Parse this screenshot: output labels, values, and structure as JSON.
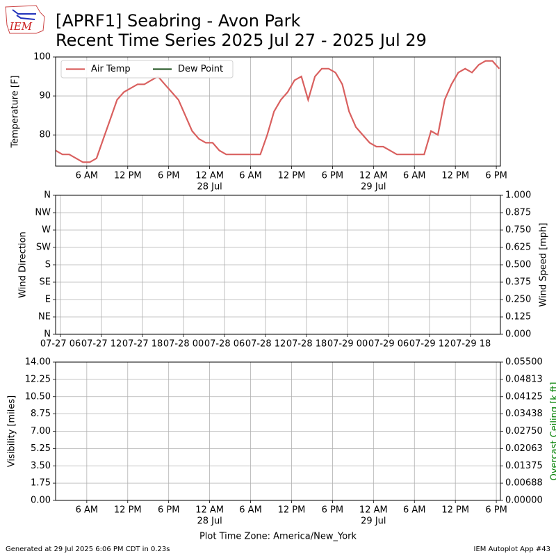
{
  "header": {
    "title_line1": "[APRF1] Seabring - Avon Park",
    "title_line2": "Recent Time Series 2025 Jul 27 - 2025 Jul 29",
    "logo_text": "IEM"
  },
  "chart_data": [
    {
      "type": "line",
      "ylabel": "Temperature [F]",
      "legend": "upper left",
      "grid": true,
      "x": [
        "2025-07-27T01:26",
        "2025-07-27T02:26",
        "2025-07-27T03:26",
        "2025-07-27T04:26",
        "2025-07-27T05:26",
        "2025-07-27T06:26",
        "2025-07-27T07:26",
        "2025-07-27T08:26",
        "2025-07-27T09:26",
        "2025-07-27T10:26",
        "2025-07-27T11:26",
        "2025-07-27T12:26",
        "2025-07-27T13:26",
        "2025-07-27T14:26",
        "2025-07-27T15:26",
        "2025-07-27T16:26",
        "2025-07-27T17:26",
        "2025-07-27T18:26",
        "2025-07-27T19:26",
        "2025-07-27T20:26",
        "2025-07-27T21:26",
        "2025-07-27T22:26",
        "2025-07-27T23:26",
        "2025-07-28T00:26",
        "2025-07-28T01:26",
        "2025-07-28T02:26",
        "2025-07-28T03:26",
        "2025-07-28T04:26",
        "2025-07-28T05:26",
        "2025-07-28T06:26",
        "2025-07-28T07:26",
        "2025-07-28T08:26",
        "2025-07-28T09:26",
        "2025-07-28T10:26",
        "2025-07-28T11:26",
        "2025-07-28T12:26",
        "2025-07-28T13:26",
        "2025-07-28T14:26",
        "2025-07-28T15:26",
        "2025-07-28T16:26",
        "2025-07-28T17:26",
        "2025-07-28T18:26",
        "2025-07-28T19:26",
        "2025-07-28T20:26",
        "2025-07-28T21:26",
        "2025-07-28T22:26",
        "2025-07-28T23:26",
        "2025-07-29T00:26",
        "2025-07-29T01:26",
        "2025-07-29T02:26",
        "2025-07-29T03:26",
        "2025-07-29T04:26",
        "2025-07-29T05:26",
        "2025-07-29T06:26",
        "2025-07-29T07:26",
        "2025-07-29T08:26",
        "2025-07-29T09:26",
        "2025-07-29T10:26",
        "2025-07-29T11:26",
        "2025-07-29T12:26",
        "2025-07-29T13:26",
        "2025-07-29T14:26",
        "2025-07-29T15:26",
        "2025-07-29T16:26",
        "2025-07-29T17:26",
        "2025-07-29T18:26"
      ],
      "series": [
        {
          "name": "Air Temp",
          "color": "#d9605f",
          "values": [
            76,
            75,
            75,
            74,
            73,
            73,
            74,
            79,
            84,
            89,
            91,
            92,
            93,
            93,
            94,
            95,
            93,
            91,
            89,
            85,
            81,
            79,
            78,
            78,
            76,
            75,
            75,
            75,
            75,
            75,
            75,
            80,
            86,
            89,
            91,
            94,
            95,
            89,
            95,
            97,
            97,
            96,
            93,
            86,
            82,
            80,
            78,
            77,
            77,
            76,
            75,
            75,
            75,
            75,
            75,
            81,
            80,
            89,
            93,
            96,
            97,
            96,
            98,
            99,
            99,
            97
          ]
        },
        {
          "name": "Dew Point",
          "color": "#2e5e2e",
          "values": [
            null,
            null,
            null,
            null,
            null,
            null,
            null,
            null,
            null,
            null,
            null,
            null,
            null,
            null,
            null,
            null,
            null,
            null,
            null,
            null,
            null,
            null,
            null,
            null,
            null,
            null,
            null,
            null,
            null,
            null,
            null,
            null,
            null,
            null,
            null,
            null,
            null,
            null,
            null,
            null,
            null,
            null,
            null,
            null,
            null,
            null,
            null,
            null,
            null,
            null,
            null,
            null,
            null,
            null,
            null,
            null,
            null,
            null,
            null,
            null,
            null,
            null,
            null,
            null,
            null,
            null
          ]
        }
      ],
      "xlim": [
        "2025-07-27T01:26",
        "2025-07-29T18:36"
      ],
      "xticks": [
        {
          "value": "2025-07-27T06:00",
          "label": "6 AM"
        },
        {
          "value": "2025-07-27T12:00",
          "label": "12 PM"
        },
        {
          "value": "2025-07-27T18:00",
          "label": "6 PM"
        },
        {
          "value": "2025-07-28T00:00",
          "label": "12 AM"
        },
        {
          "value": "2025-07-28T06:00",
          "label": "6 AM"
        },
        {
          "value": "2025-07-28T12:00",
          "label": "12 PM"
        },
        {
          "value": "2025-07-28T18:00",
          "label": "6 PM"
        },
        {
          "value": "2025-07-29T00:00",
          "label": "12 AM"
        },
        {
          "value": "2025-07-29T06:00",
          "label": "6 AM"
        },
        {
          "value": "2025-07-29T12:00",
          "label": "12 PM"
        },
        {
          "value": "2025-07-29T18:00",
          "label": "6 PM"
        }
      ],
      "xtick_sublabels": [
        {
          "value": "2025-07-28T00:00",
          "label": "28 Jul"
        },
        {
          "value": "2025-07-29T00:00",
          "label": "29 Jul"
        }
      ],
      "ylim": [
        72,
        100
      ],
      "yticks": [
        80,
        90,
        100
      ]
    },
    {
      "type": "empty",
      "ylabel": "Wind Direction",
      "y2label": "Wind Speed [mph]",
      "grid": true,
      "xlim": [
        "2025-07-27T05:17",
        "2025-07-29T22:22"
      ],
      "xticks": [
        {
          "value": "2025-07-27T06:00",
          "label": "07-27 06"
        },
        {
          "value": "2025-07-27T12:00",
          "label": "07-27 12"
        },
        {
          "value": "2025-07-27T18:00",
          "label": "07-27 18"
        },
        {
          "value": "2025-07-28T00:00",
          "label": "07-28 00"
        },
        {
          "value": "2025-07-28T06:00",
          "label": "07-28 06"
        },
        {
          "value": "2025-07-28T12:00",
          "label": "07-28 12"
        },
        {
          "value": "2025-07-28T18:00",
          "label": "07-28 18"
        },
        {
          "value": "2025-07-29T00:00",
          "label": "07-29 00"
        },
        {
          "value": "2025-07-29T06:00",
          "label": "07-29 06"
        },
        {
          "value": "2025-07-29T12:00",
          "label": "07-29 12"
        },
        {
          "value": "2025-07-29T18:00",
          "label": "07-29 18"
        }
      ],
      "ylim": [
        0,
        360
      ],
      "yticks": [
        {
          "value": 0,
          "label": "N"
        },
        {
          "value": 45,
          "label": "NE"
        },
        {
          "value": 90,
          "label": "E"
        },
        {
          "value": 135,
          "label": "SE"
        },
        {
          "value": 180,
          "label": "S"
        },
        {
          "value": 225,
          "label": "SW"
        },
        {
          "value": 270,
          "label": "W"
        },
        {
          "value": 315,
          "label": "NW"
        },
        {
          "value": 360,
          "label": "N"
        }
      ],
      "y2lim": [
        0,
        1
      ],
      "y2ticks": [
        {
          "value": 0,
          "label": "0.000"
        },
        {
          "value": 0.125,
          "label": "0.125"
        },
        {
          "value": 0.25,
          "label": "0.250"
        },
        {
          "value": 0.375,
          "label": "0.375"
        },
        {
          "value": 0.5,
          "label": "0.500"
        },
        {
          "value": 0.625,
          "label": "0.625"
        },
        {
          "value": 0.75,
          "label": "0.750"
        },
        {
          "value": 0.875,
          "label": "0.875"
        },
        {
          "value": 1,
          "label": "1.000"
        }
      ]
    },
    {
      "type": "empty",
      "ylabel": "Visibility [miles]",
      "y2label": "Overcast Ceiling [k ft]",
      "y2label_color": "#008000",
      "grid": true,
      "xlim": [
        "2025-07-27T01:26",
        "2025-07-29T18:36"
      ],
      "xticks": [
        {
          "value": "2025-07-27T06:00",
          "label": "6 AM"
        },
        {
          "value": "2025-07-27T12:00",
          "label": "12 PM"
        },
        {
          "value": "2025-07-27T18:00",
          "label": "6 PM"
        },
        {
          "value": "2025-07-28T00:00",
          "label": "12 AM"
        },
        {
          "value": "2025-07-28T06:00",
          "label": "6 AM"
        },
        {
          "value": "2025-07-28T12:00",
          "label": "12 PM"
        },
        {
          "value": "2025-07-28T18:00",
          "label": "6 PM"
        },
        {
          "value": "2025-07-29T00:00",
          "label": "12 AM"
        },
        {
          "value": "2025-07-29T06:00",
          "label": "6 AM"
        },
        {
          "value": "2025-07-29T12:00",
          "label": "12 PM"
        },
        {
          "value": "2025-07-29T18:00",
          "label": "6 PM"
        }
      ],
      "xtick_sublabels": [
        {
          "value": "2025-07-28T00:00",
          "label": "28 Jul"
        },
        {
          "value": "2025-07-29T00:00",
          "label": "29 Jul"
        }
      ],
      "xlabel": "Plot Time Zone: America/New_York",
      "ylim": [
        0,
        14
      ],
      "yticks": [
        {
          "value": 0,
          "label": "0.00"
        },
        {
          "value": 1.75,
          "label": "1.75"
        },
        {
          "value": 3.5,
          "label": "3.50"
        },
        {
          "value": 5.25,
          "label": "5.25"
        },
        {
          "value": 7,
          "label": "7.00"
        },
        {
          "value": 8.75,
          "label": "8.75"
        },
        {
          "value": 10.5,
          "label": "10.50"
        },
        {
          "value": 12.25,
          "label": "12.25"
        },
        {
          "value": 14,
          "label": "14.00"
        }
      ],
      "y2lim": [
        0,
        0.055
      ],
      "y2ticks": [
        {
          "value": 0,
          "label": "0.00000"
        },
        {
          "value": 0.006875,
          "label": "0.00688"
        },
        {
          "value": 0.01375,
          "label": "0.01375"
        },
        {
          "value": 0.020625,
          "label": "0.02063"
        },
        {
          "value": 0.0275,
          "label": "0.02750"
        },
        {
          "value": 0.034375,
          "label": "0.03438"
        },
        {
          "value": 0.04125,
          "label": "0.04125"
        },
        {
          "value": 0.048125,
          "label": "0.04813"
        },
        {
          "value": 0.055,
          "label": "0.05500"
        }
      ]
    }
  ],
  "footer": {
    "generated": "Generated at 29 Jul 2025 6:06 PM CDT in 0.23s",
    "app": "IEM Autoplot App #43"
  }
}
